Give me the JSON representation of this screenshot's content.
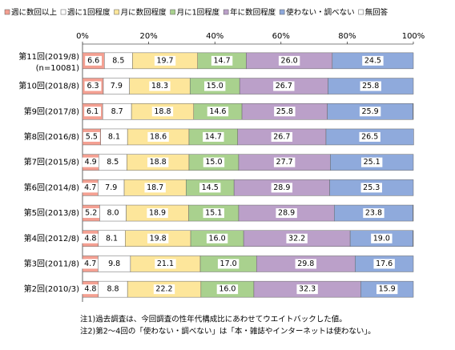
{
  "chart_data": {
    "type": "stacked_bar_horizontal",
    "categories": [
      "第11回(2019/8)",
      "第10回(2018/8)",
      "第9回(2017/8)",
      "第8回(2016/8)",
      "第7回(2015/8)",
      "第6回(2014/8)",
      "第5回(2013/8)",
      "第4回(2012/8)",
      "第3回(2011/8)",
      "第2回(2010/3)"
    ],
    "sample_label": "(n=10081)",
    "xlim": [
      0,
      100
    ],
    "xticks": [
      {
        "value": 0,
        "label": "0%"
      },
      {
        "value": 20,
        "label": "20%"
      },
      {
        "value": 40,
        "label": "40%"
      },
      {
        "value": 60,
        "label": "60%"
      },
      {
        "value": 80,
        "label": "80%"
      },
      {
        "value": 100,
        "label": "100%"
      }
    ],
    "series": [
      {
        "name": "週に数回以上",
        "color": "#f4a092",
        "values": [
          6.6,
          6.3,
          6.1,
          5.5,
          4.9,
          4.7,
          5.2,
          4.8,
          4.7,
          4.8
        ],
        "value_labels": [
          "6.6",
          "6.3",
          "6.1",
          "5.5",
          "4.9",
          "4.7",
          "5.2",
          "4.8",
          "4.7",
          "4.8"
        ]
      },
      {
        "name": "週に1回程度",
        "color": "#ffffff",
        "values": [
          8.5,
          7.9,
          8.7,
          8.1,
          8.5,
          7.9,
          8.0,
          8.1,
          9.8,
          8.8
        ],
        "value_labels": [
          "8.5",
          "7.9",
          "8.7",
          "8.1",
          "8.5",
          "7.9",
          "8.0",
          "8.1",
          "9.8",
          "8.8"
        ]
      },
      {
        "name": "月に数回程度",
        "color": "#fde69b",
        "values": [
          19.7,
          18.3,
          18.8,
          18.6,
          18.8,
          18.7,
          18.9,
          19.8,
          21.1,
          22.2
        ],
        "value_labels": [
          "19.7",
          "18.3",
          "18.8",
          "18.6",
          "18.8",
          "18.7",
          "18.9",
          "19.8",
          "21.1",
          "22.2"
        ]
      },
      {
        "name": "月に1回程度",
        "color": "#a9d18e",
        "values": [
          14.7,
          15.0,
          14.6,
          14.7,
          15.0,
          14.5,
          15.1,
          16.0,
          17.0,
          16.0
        ],
        "value_labels": [
          "14.7",
          "15.0",
          "14.6",
          "14.7",
          "15.0",
          "14.5",
          "15.1",
          "16.0",
          "17.0",
          "16.0"
        ]
      },
      {
        "name": "年に数回程度",
        "color": "#bba0c9",
        "values": [
          26.0,
          26.7,
          25.8,
          26.7,
          27.7,
          28.9,
          28.9,
          32.2,
          29.8,
          32.3
        ],
        "value_labels": [
          "26.0",
          "26.7",
          "25.8",
          "26.7",
          "27.7",
          "28.9",
          "28.9",
          "32.2",
          "29.8",
          "32.3"
        ]
      },
      {
        "name": "使わない・調べない",
        "color": "#8faadc",
        "values": [
          24.5,
          25.8,
          25.9,
          26.5,
          25.1,
          25.3,
          23.8,
          19.0,
          17.6,
          15.9
        ],
        "value_labels": [
          "24.5",
          "25.8",
          "25.9",
          "26.5",
          "25.1",
          "25.3",
          "23.8",
          "19.0",
          "17.6",
          "15.9"
        ]
      },
      {
        "name": "無回答",
        "color": "#ffffff",
        "values": [
          0,
          0,
          0.1,
          0,
          0,
          0,
          0.1,
          0.1,
          0,
          0
        ]
      }
    ],
    "notes": [
      "注1)過去調査は、今回調査の性年代構成比にあわせてウエイトバックした値。",
      "注2)第2～4回の「使わない・調べない」は「本・雑誌やインターネットは使わない」。"
    ]
  }
}
